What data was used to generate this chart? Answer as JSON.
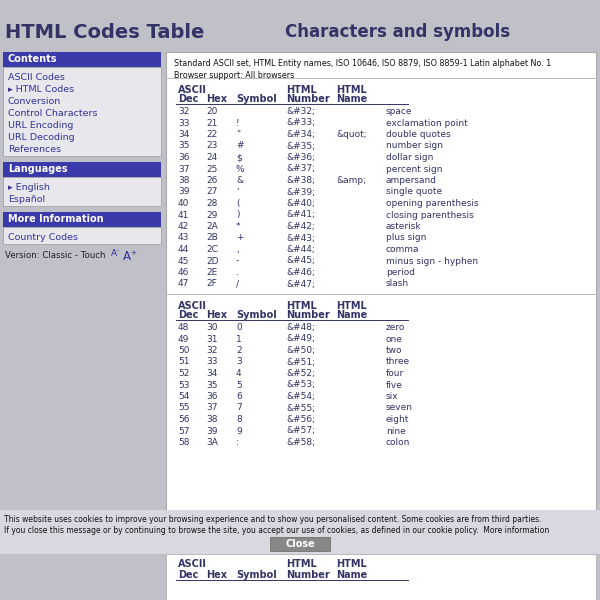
{
  "title_left": "HTML Codes Table",
  "title_right": "Characters and symbols",
  "bg_color": "#c0c0c8",
  "sidebar_bg": "#e8e8ec",
  "table_bg": "#ffffff",
  "header_bar_color": "#3a3aaa",
  "link_color": "#333399",
  "text_color": "#333366",
  "dark_text": "#111111",
  "sidebar_sections": [
    {
      "header": "Contents",
      "items": [
        "ASCII Codes",
        "▸ HTML Codes",
        "Conversion",
        "Control Characters",
        "URL Encoding",
        "URL Decoding",
        "References"
      ]
    },
    {
      "header": "Languages",
      "items": [
        "▸ English",
        "Español"
      ]
    },
    {
      "header": "More Information",
      "items": [
        "Country Codes"
      ]
    }
  ],
  "version_text": "Version: Classic - Touch",
  "subtitle_text": "Standard ASCII set, HTML Entity names, ISO 10646, ISO 8879, ISO 8859-1 Latin alphabet No. 1\nBrowser support: All browsers",
  "table1_rows": [
    [
      "32",
      "20",
      "",
      "&#32;",
      "",
      "space"
    ],
    [
      "33",
      "21",
      "!",
      "&#33;",
      "",
      "exclamation point"
    ],
    [
      "34",
      "22",
      "\"",
      "&#34;",
      "&quot;",
      "double quotes"
    ],
    [
      "35",
      "23",
      "#",
      "&#35;",
      "",
      "number sign"
    ],
    [
      "36",
      "24",
      "$",
      "&#36;",
      "",
      "dollar sign"
    ],
    [
      "37",
      "25",
      "%",
      "&#37;",
      "",
      "percent sign"
    ],
    [
      "38",
      "26",
      "&",
      "&#38;",
      "&amp;",
      "ampersand"
    ],
    [
      "39",
      "27",
      "'",
      "&#39;",
      "",
      "single quote"
    ],
    [
      "40",
      "28",
      "(",
      "&#40;",
      "",
      "opening parenthesis"
    ],
    [
      "41",
      "29",
      ")",
      "&#41;",
      "",
      "closing parenthesis"
    ],
    [
      "42",
      "2A",
      "*",
      "&#42;",
      "",
      "asterisk"
    ],
    [
      "43",
      "2B",
      "+",
      "&#43;",
      "",
      "plus sign"
    ],
    [
      "44",
      "2C",
      ",",
      "&#44;",
      "",
      "comma"
    ],
    [
      "45",
      "2D",
      "-",
      "&#45;",
      "",
      "minus sign - hyphen"
    ],
    [
      "46",
      "2E",
      ".",
      "&#46;",
      "",
      "period"
    ],
    [
      "47",
      "2F",
      "/",
      "&#47;",
      "",
      "slash"
    ]
  ],
  "table2_rows": [
    [
      "48",
      "30",
      "0",
      "&#48;",
      "",
      "zero"
    ],
    [
      "49",
      "31",
      "1",
      "&#49;",
      "",
      "one"
    ],
    [
      "50",
      "32",
      "2",
      "&#50;",
      "",
      "two"
    ],
    [
      "51",
      "33",
      "3",
      "&#51;",
      "",
      "three"
    ],
    [
      "52",
      "34",
      "4",
      "&#52;",
      "",
      "four"
    ],
    [
      "53",
      "35",
      "5",
      "&#53;",
      "",
      "five"
    ],
    [
      "54",
      "36",
      "6",
      "&#54;",
      "",
      "six"
    ],
    [
      "55",
      "37",
      "7",
      "&#55;",
      "",
      "seven"
    ],
    [
      "56",
      "38",
      "8",
      "&#56;",
      "",
      "eight"
    ],
    [
      "57",
      "39",
      "9",
      "&#57;",
      "",
      "nine"
    ],
    [
      "58",
      "3A",
      ":",
      "&#58;",
      "",
      "colon"
    ]
  ],
  "cookie_text1": "This website uses cookies to improve your browsing experience and to show you personalised content. Some cookies are from third parties.",
  "cookie_text2": "If you close this message or by continuing to browse the site, you accept our use of cookies, as defined in our cookie policy.  More information",
  "cookie_button": "Close",
  "subheaders": [
    "Dec",
    "Hex",
    "Symbol",
    "Number",
    "Name"
  ]
}
